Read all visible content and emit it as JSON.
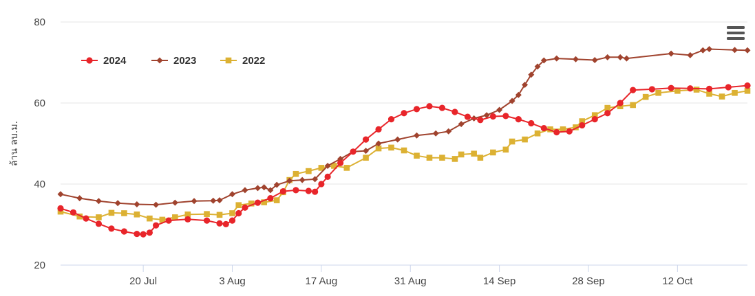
{
  "chart_data": {
    "type": "line",
    "title": "",
    "xlabel": "",
    "ylabel": "ล้าน ลบ.ม.",
    "ylim": [
      20,
      80
    ],
    "yticks": [
      20,
      40,
      60,
      80
    ],
    "xlim": [
      "2024-07-07",
      "2024-10-23"
    ],
    "xticks": [
      {
        "date": "2024-07-20",
        "label": "20 Jul"
      },
      {
        "date": "2024-08-03",
        "label": "3 Aug"
      },
      {
        "date": "2024-08-17",
        "label": "17 Aug"
      },
      {
        "date": "2024-08-31",
        "label": "31 Aug"
      },
      {
        "date": "2024-09-14",
        "label": "14 Sep"
      },
      {
        "date": "2024-09-28",
        "label": "28 Sep"
      },
      {
        "date": "2024-10-12",
        "label": "12 Oct"
      }
    ],
    "grid": true,
    "legend_position": "top-left",
    "menu_icon": "hamburger-menu-icon",
    "series": [
      {
        "name": "2024",
        "color": "#e8252a",
        "marker": "circle",
        "points": [
          [
            "2024-07-07",
            34.0
          ],
          [
            "2024-07-09",
            33.0
          ],
          [
            "2024-07-11",
            31.5
          ],
          [
            "2024-07-13",
            30.2
          ],
          [
            "2024-07-15",
            29.0
          ],
          [
            "2024-07-17",
            28.3
          ],
          [
            "2024-07-19",
            27.7
          ],
          [
            "2024-07-20",
            27.6
          ],
          [
            "2024-07-21",
            28.0
          ],
          [
            "2024-07-22",
            29.8
          ],
          [
            "2024-07-24",
            31.0
          ],
          [
            "2024-07-27",
            31.3
          ],
          [
            "2024-07-30",
            31.0
          ],
          [
            "2024-08-01",
            30.3
          ],
          [
            "2024-08-02",
            30.1
          ],
          [
            "2024-08-03",
            31.0
          ],
          [
            "2024-08-04",
            32.8
          ],
          [
            "2024-08-05",
            34.2
          ],
          [
            "2024-08-07",
            35.4
          ],
          [
            "2024-08-09",
            36.5
          ],
          [
            "2024-08-11",
            38.2
          ],
          [
            "2024-08-13",
            38.5
          ],
          [
            "2024-08-15",
            38.3
          ],
          [
            "2024-08-16",
            38.1
          ],
          [
            "2024-08-17",
            40.0
          ],
          [
            "2024-08-18",
            41.8
          ],
          [
            "2024-08-20",
            45.2
          ],
          [
            "2024-08-22",
            48.0
          ],
          [
            "2024-08-24",
            51.0
          ],
          [
            "2024-08-26",
            53.5
          ],
          [
            "2024-08-28",
            56.0
          ],
          [
            "2024-08-30",
            57.5
          ],
          [
            "2024-09-01",
            58.5
          ],
          [
            "2024-09-03",
            59.2
          ],
          [
            "2024-09-05",
            58.8
          ],
          [
            "2024-09-07",
            57.8
          ],
          [
            "2024-09-09",
            56.6
          ],
          [
            "2024-09-11",
            55.8
          ],
          [
            "2024-09-13",
            56.7
          ],
          [
            "2024-09-15",
            56.8
          ],
          [
            "2024-09-17",
            56.0
          ],
          [
            "2024-09-19",
            55.0
          ],
          [
            "2024-09-21",
            53.8
          ],
          [
            "2024-09-23",
            52.8
          ],
          [
            "2024-09-25",
            53.0
          ],
          [
            "2024-09-27",
            54.5
          ],
          [
            "2024-09-29",
            56.0
          ],
          [
            "2024-10-01",
            57.5
          ],
          [
            "2024-10-03",
            60.0
          ],
          [
            "2024-10-05",
            63.2
          ],
          [
            "2024-10-08",
            63.4
          ],
          [
            "2024-10-11",
            63.7
          ],
          [
            "2024-10-14",
            63.6
          ],
          [
            "2024-10-17",
            63.5
          ],
          [
            "2024-10-20",
            63.9
          ],
          [
            "2024-10-23",
            64.3
          ]
        ]
      },
      {
        "name": "2023",
        "color": "#a0432e",
        "marker": "diamond",
        "points": [
          [
            "2024-07-07",
            37.5
          ],
          [
            "2024-07-10",
            36.5
          ],
          [
            "2024-07-13",
            35.8
          ],
          [
            "2024-07-16",
            35.3
          ],
          [
            "2024-07-19",
            35.0
          ],
          [
            "2024-07-22",
            34.9
          ],
          [
            "2024-07-25",
            35.4
          ],
          [
            "2024-07-28",
            35.8
          ],
          [
            "2024-07-31",
            35.9
          ],
          [
            "2024-08-01",
            36.0
          ],
          [
            "2024-08-03",
            37.5
          ],
          [
            "2024-08-05",
            38.5
          ],
          [
            "2024-08-07",
            39.0
          ],
          [
            "2024-08-08",
            39.2
          ],
          [
            "2024-08-09",
            38.5
          ],
          [
            "2024-08-10",
            39.8
          ],
          [
            "2024-08-12",
            40.8
          ],
          [
            "2024-08-14",
            41.0
          ],
          [
            "2024-08-16",
            41.2
          ],
          [
            "2024-08-18",
            44.5
          ],
          [
            "2024-08-20",
            46.2
          ],
          [
            "2024-08-22",
            48.0
          ],
          [
            "2024-08-24",
            48.2
          ],
          [
            "2024-08-26",
            50.0
          ],
          [
            "2024-08-29",
            51.0
          ],
          [
            "2024-09-01",
            52.0
          ],
          [
            "2024-09-04",
            52.5
          ],
          [
            "2024-09-06",
            53.0
          ],
          [
            "2024-09-08",
            54.8
          ],
          [
            "2024-09-10",
            56.2
          ],
          [
            "2024-09-12",
            57.0
          ],
          [
            "2024-09-14",
            58.3
          ],
          [
            "2024-09-16",
            60.5
          ],
          [
            "2024-09-17",
            62.0
          ],
          [
            "2024-09-18",
            64.5
          ],
          [
            "2024-09-19",
            67.0
          ],
          [
            "2024-09-20",
            69.0
          ],
          [
            "2024-09-21",
            70.5
          ],
          [
            "2024-09-23",
            71.0
          ],
          [
            "2024-09-26",
            70.8
          ],
          [
            "2024-09-29",
            70.6
          ],
          [
            "2024-10-01",
            71.3
          ],
          [
            "2024-10-03",
            71.3
          ],
          [
            "2024-10-04",
            71.0
          ],
          [
            "2024-10-11",
            72.2
          ],
          [
            "2024-10-14",
            71.8
          ],
          [
            "2024-10-16",
            73.0
          ],
          [
            "2024-10-17",
            73.3
          ],
          [
            "2024-10-21",
            73.1
          ],
          [
            "2024-10-23",
            73.0
          ]
        ]
      },
      {
        "name": "2022",
        "color": "#dcb133",
        "marker": "square",
        "points": [
          [
            "2024-07-07",
            33.2
          ],
          [
            "2024-07-10",
            32.0
          ],
          [
            "2024-07-13",
            31.8
          ],
          [
            "2024-07-15",
            32.9
          ],
          [
            "2024-07-17",
            32.8
          ],
          [
            "2024-07-19",
            32.5
          ],
          [
            "2024-07-21",
            31.5
          ],
          [
            "2024-07-23",
            31.2
          ],
          [
            "2024-07-25",
            31.8
          ],
          [
            "2024-07-27",
            32.5
          ],
          [
            "2024-07-30",
            32.6
          ],
          [
            "2024-08-01",
            32.4
          ],
          [
            "2024-08-03",
            32.8
          ],
          [
            "2024-08-04",
            34.8
          ],
          [
            "2024-08-06",
            35.2
          ],
          [
            "2024-08-08",
            35.5
          ],
          [
            "2024-08-10",
            36.0
          ],
          [
            "2024-08-11",
            38.0
          ],
          [
            "2024-08-12",
            41.0
          ],
          [
            "2024-08-13",
            42.5
          ],
          [
            "2024-08-15",
            43.2
          ],
          [
            "2024-08-17",
            44.0
          ],
          [
            "2024-08-19",
            44.5
          ],
          [
            "2024-08-21",
            44.0
          ],
          [
            "2024-08-24",
            46.5
          ],
          [
            "2024-08-26",
            48.8
          ],
          [
            "2024-08-28",
            49.0
          ],
          [
            "2024-08-30",
            48.3
          ],
          [
            "2024-09-01",
            47.0
          ],
          [
            "2024-09-03",
            46.5
          ],
          [
            "2024-09-05",
            46.5
          ],
          [
            "2024-09-07",
            46.2
          ],
          [
            "2024-09-08",
            47.3
          ],
          [
            "2024-09-10",
            47.5
          ],
          [
            "2024-09-11",
            46.5
          ],
          [
            "2024-09-13",
            47.8
          ],
          [
            "2024-09-15",
            48.5
          ],
          [
            "2024-09-16",
            50.5
          ],
          [
            "2024-09-18",
            51.0
          ],
          [
            "2024-09-20",
            52.5
          ],
          [
            "2024-09-22",
            53.5
          ],
          [
            "2024-09-24",
            53.5
          ],
          [
            "2024-09-26",
            54.0
          ],
          [
            "2024-09-27",
            55.5
          ],
          [
            "2024-09-29",
            57.0
          ],
          [
            "2024-10-01",
            58.8
          ],
          [
            "2024-10-03",
            59.2
          ],
          [
            "2024-10-05",
            59.5
          ],
          [
            "2024-10-07",
            61.5
          ],
          [
            "2024-10-09",
            62.5
          ],
          [
            "2024-10-12",
            63.0
          ],
          [
            "2024-10-15",
            63.3
          ],
          [
            "2024-10-17",
            62.3
          ],
          [
            "2024-10-19",
            61.6
          ],
          [
            "2024-10-21",
            62.5
          ],
          [
            "2024-10-23",
            63.0
          ]
        ]
      }
    ]
  }
}
